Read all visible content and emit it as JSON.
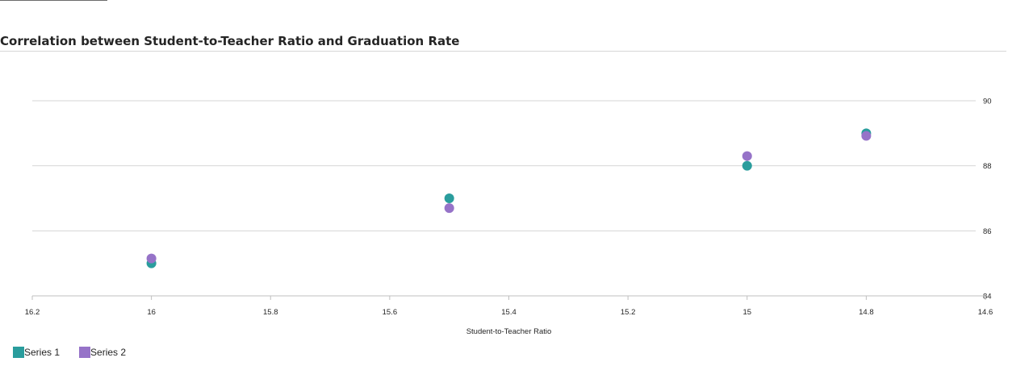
{
  "chart_data": {
    "type": "scatter",
    "title": "Correlation between Student-to-Teacher Ratio and Graduation Rate",
    "xlabel": "Student-to-Teacher Ratio",
    "ylabel": "",
    "xlim": [
      16.2,
      14.6
    ],
    "ylim": [
      84,
      90
    ],
    "x_reversed": true,
    "y_axis_position": "right",
    "x_ticks": [
      "16.2",
      "16",
      "15.8",
      "15.6",
      "15.4",
      "15.2",
      "15",
      "14.8",
      "14.6"
    ],
    "y_ticks": [
      "84",
      "86",
      "88",
      "90"
    ],
    "grid": "horizontal",
    "legend_position": "bottom-left",
    "series": [
      {
        "name": "Series 1",
        "color": "#2a9d9d",
        "points": [
          {
            "x": 16.0,
            "y": 85.0
          },
          {
            "x": 15.5,
            "y": 87.0
          },
          {
            "x": 15.0,
            "y": 88.0
          },
          {
            "x": 14.8,
            "y": 89.0
          }
        ]
      },
      {
        "name": "Series 2",
        "color": "#9673c8",
        "points": [
          {
            "x": 16.0,
            "y": 85.15
          },
          {
            "x": 15.5,
            "y": 86.7
          },
          {
            "x": 15.0,
            "y": 88.3
          },
          {
            "x": 14.8,
            "y": 88.92
          }
        ]
      }
    ]
  }
}
